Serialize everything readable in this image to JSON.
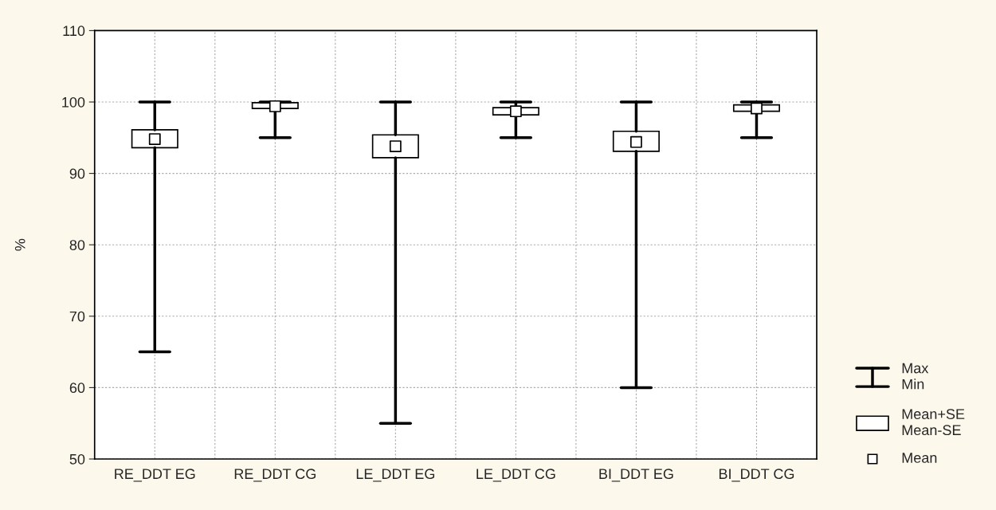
{
  "chart_data": {
    "type": "box",
    "ylabel": "%",
    "categories": [
      "RE_DDT EG",
      "RE_DDT CG",
      "LE_DDT EG",
      "LE_DDT CG",
      "BI_DDT EG",
      "BI_DDT CG"
    ],
    "boxes": [
      {
        "low": 65,
        "q1": 93.6,
        "median": 94.8,
        "q3": 96.1,
        "high": 100
      },
      {
        "low": 95,
        "q1": 99.1,
        "median": 99.4,
        "q3": 99.9,
        "high": 100
      },
      {
        "low": 55,
        "q1": 92.2,
        "median": 93.8,
        "q3": 95.4,
        "high": 100
      },
      {
        "low": 95,
        "q1": 98.2,
        "median": 98.7,
        "q3": 99.2,
        "high": 100
      },
      {
        "low": 60,
        "q1": 93.1,
        "median": 94.4,
        "q3": 95.9,
        "high": 100
      },
      {
        "low": 95,
        "q1": 98.7,
        "median": 99.1,
        "q3": 99.6,
        "high": 100
      }
    ],
    "ylim": [
      50,
      110
    ],
    "yticks": [
      50,
      60,
      70,
      80,
      90,
      100,
      110
    ],
    "grid": true,
    "annotations": [
      "Max\nMin",
      "Mean+SE\nMean-SE",
      "Mean"
    ]
  }
}
